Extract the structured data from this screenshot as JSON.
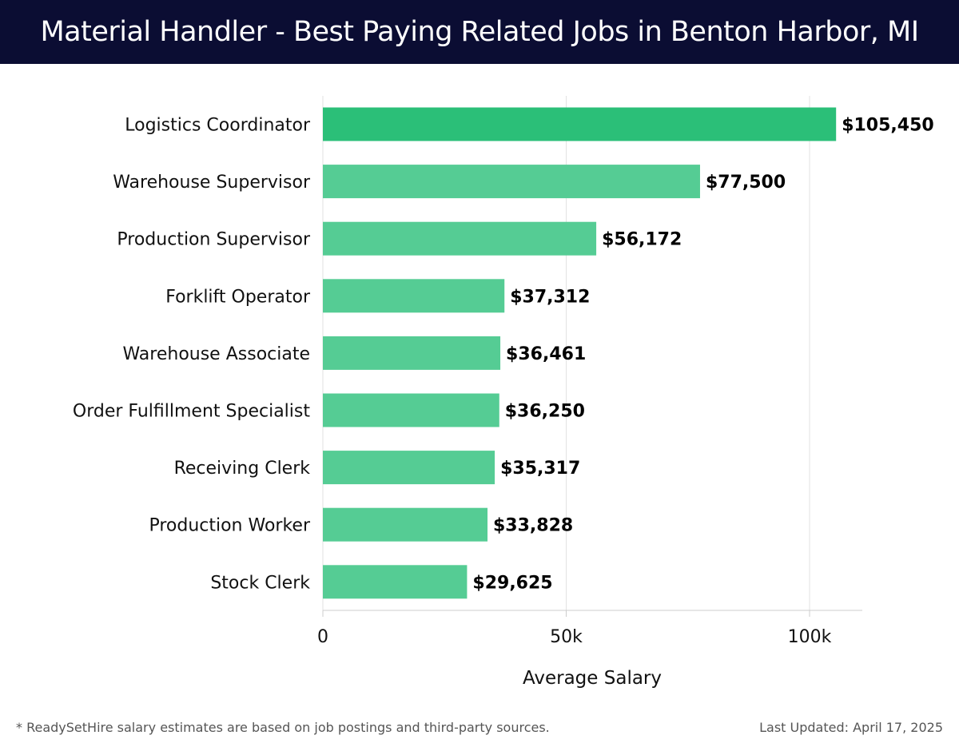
{
  "header": {
    "title": "Material Handler - Best Paying Related Jobs in Benton Harbor, MI"
  },
  "chart_data": {
    "type": "bar",
    "orientation": "horizontal",
    "categories": [
      "Logistics Coordinator",
      "Warehouse Supervisor",
      "Production Supervisor",
      "Forklift Operator",
      "Warehouse Associate",
      "Order Fulfillment Specialist",
      "Receiving Clerk",
      "Production Worker",
      "Stock Clerk"
    ],
    "values": [
      105450,
      77500,
      56172,
      37312,
      36461,
      36250,
      35317,
      33828,
      29625
    ],
    "value_labels": [
      "$105,450",
      "$77,500",
      "$56,172",
      "$37,312",
      "$36,461",
      "$36,250",
      "$35,317",
      "$33,828",
      "$29,625"
    ],
    "xlabel": "Average Salary",
    "ylabel": "",
    "xlim": [
      0,
      111000
    ],
    "x_ticks": [
      0,
      50000,
      100000
    ],
    "x_tick_labels": [
      "0",
      "50k",
      "100k"
    ],
    "grid": "vertical",
    "legend": "none",
    "colors": {
      "top_bar": "#2bbf78",
      "bar": "#55cc94",
      "header_bg": "#0b0d33"
    }
  },
  "footer": {
    "note": "* ReadySetHire salary estimates are based on job postings and third-party sources.",
    "updated": "Last Updated: April 17, 2025"
  }
}
